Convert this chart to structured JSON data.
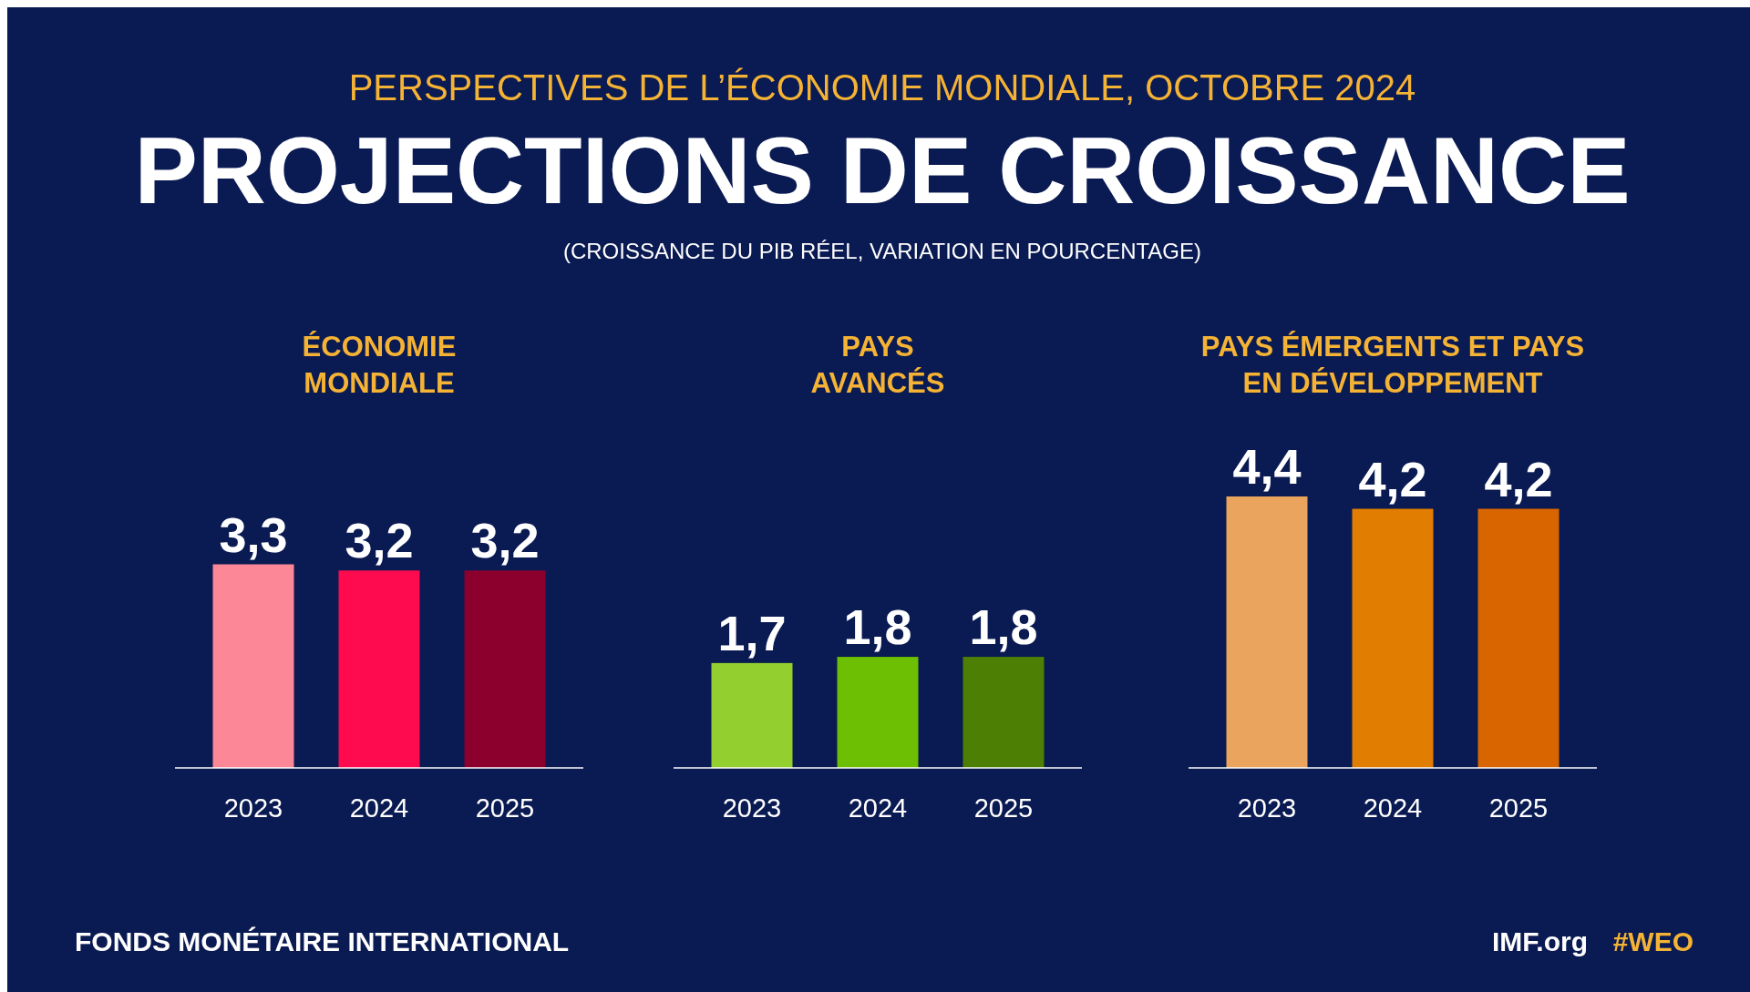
{
  "chart_data": [
    {
      "type": "bar",
      "title": "ÉCONOMIE\nMONDIALE",
      "categories": [
        "2023",
        "2024",
        "2025"
      ],
      "values": [
        3.3,
        3.2,
        3.2
      ],
      "colors": [
        "#fc8796",
        "#fe0a4e",
        "#8c002e"
      ],
      "value_labels": [
        "3,3",
        "3,2",
        "3,2"
      ],
      "annotations": [
        "PERSPECTIVES DE L’ÉCONOMIE MONDIALE, OCTOBRE 2024",
        "PROJECTIONS DE CROISSANCE",
        "(CROISSANCE DU PIB RÉEL, VARIATION EN POURCENTAGE)",
        "FONDS MONÉTAIRE INTERNATIONAL",
        "IMF.org",
        "#WEO"
      ]
    },
    {
      "type": "bar",
      "title": "PAYS\nAVANCÉS",
      "categories": [
        "2023",
        "2024",
        "2025"
      ],
      "values": [
        1.7,
        1.8,
        1.8
      ],
      "colors": [
        "#93d02f",
        "#6cbf02",
        "#4e7f05"
      ],
      "value_labels": [
        "1,7",
        "1,8",
        "1,8"
      ]
    },
    {
      "type": "bar",
      "title": "PAYS ÉMERGENTS ET PAYS\nEN DÉVELOPPEMENT",
      "categories": [
        "2023",
        "2024",
        "2025"
      ],
      "values": [
        4.4,
        4.2,
        4.2
      ],
      "colors": [
        "#eaa45d",
        "#e17d00",
        "#d96500"
      ],
      "value_labels": [
        "4,4",
        "4,2",
        "4,2"
      ]
    }
  ]
}
